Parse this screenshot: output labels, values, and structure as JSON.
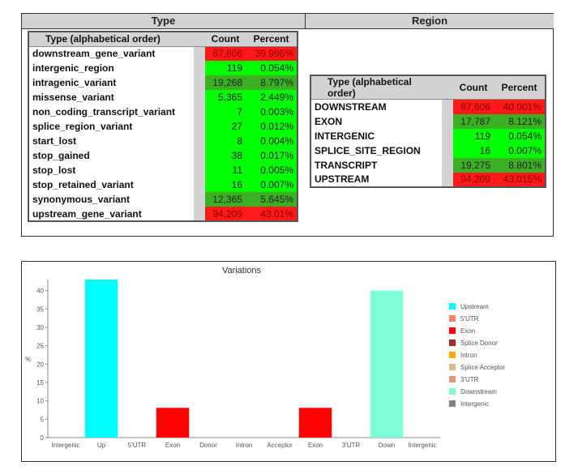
{
  "top": {
    "type_header": "Type",
    "region_header": "Region"
  },
  "type_table": {
    "col_name": "Type (alphabetical order)",
    "col_count": "Count",
    "col_percent": "Percent",
    "rows": [
      {
        "name": "downstream_gene_variant",
        "count": "87,606",
        "percent": "39.996%",
        "color": "red"
      },
      {
        "name": "intergenic_region",
        "count": "119",
        "percent": "0.054%",
        "color": "green"
      },
      {
        "name": "intragenic_variant",
        "count": "19,268",
        "percent": "8.797%",
        "color": "dgreen"
      },
      {
        "name": "missense_variant",
        "count": "5,365",
        "percent": "2.449%",
        "color": "green"
      },
      {
        "name": "non_coding_transcript_variant",
        "count": "7",
        "percent": "0.003%",
        "color": "green"
      },
      {
        "name": "splice_region_variant",
        "count": "27",
        "percent": "0.012%",
        "color": "green"
      },
      {
        "name": "start_lost",
        "count": "8",
        "percent": "0.004%",
        "color": "green"
      },
      {
        "name": "stop_gained",
        "count": "38",
        "percent": "0.017%",
        "color": "green"
      },
      {
        "name": "stop_lost",
        "count": "11",
        "percent": "0.005%",
        "color": "green"
      },
      {
        "name": "stop_retained_variant",
        "count": "16",
        "percent": "0.007%",
        "color": "green"
      },
      {
        "name": "synonymous_variant",
        "count": "12,365",
        "percent": "5.645%",
        "color": "dgreen"
      },
      {
        "name": "upstream_gene_variant",
        "count": "94,209",
        "percent": "43.01%",
        "color": "red"
      }
    ]
  },
  "region_table": {
    "col_name": "Type (alphabetical order)",
    "col_count": "Count",
    "col_percent": "Percent",
    "rows": [
      {
        "name": "DOWNSTREAM",
        "count": "87,606",
        "percent": "40.001%",
        "color": "red"
      },
      {
        "name": "EXON",
        "count": "17,787",
        "percent": "8.121%",
        "color": "dgreen"
      },
      {
        "name": "INTERGENIC",
        "count": "119",
        "percent": "0.054%",
        "color": "green"
      },
      {
        "name": "SPLICE_SITE_REGION",
        "count": "16",
        "percent": "0.007%",
        "color": "green"
      },
      {
        "name": "TRANSCRIPT",
        "count": "19,275",
        "percent": "8.801%",
        "color": "dgreen"
      },
      {
        "name": "UPSTREAM",
        "count": "94,209",
        "percent": "43.015%",
        "color": "red"
      }
    ]
  },
  "colors": {
    "red": "#ff1a1a",
    "green": "#00ff00",
    "dgreen": "#3cb024"
  },
  "chart_data": {
    "type": "bar",
    "title": "Variations",
    "ylabel": "%",
    "xlabel": "",
    "ylim": [
      0,
      43
    ],
    "yticks": [
      0,
      5,
      10,
      15,
      20,
      25,
      30,
      35,
      40
    ],
    "categories": [
      "Intergenic",
      "Up",
      "5'UTR",
      "Exon",
      "Donor",
      "Intron",
      "Acceptor",
      "Exon",
      "3'UTR",
      "Down",
      "Intergenic"
    ],
    "values": [
      0,
      43.0,
      0,
      8.1,
      0,
      0,
      0,
      8.1,
      0,
      40.0,
      0
    ],
    "bar_colors": [
      "#808080",
      "#00ffff",
      "#fa8072",
      "#ff0000",
      "#a52a2a",
      "#ffa500",
      "#deb887",
      "#ff0000",
      "#e9967a",
      "#7fffd4",
      "#808080"
    ],
    "legend": [
      {
        "label": "Upstream",
        "color": "#00ffff"
      },
      {
        "label": "5'UTR",
        "color": "#fa8072"
      },
      {
        "label": "Exon",
        "color": "#ff0000"
      },
      {
        "label": "Splice Donor",
        "color": "#a52a2a"
      },
      {
        "label": "Intron",
        "color": "#ffa500"
      },
      {
        "label": "Splice Acceptor",
        "color": "#deb887"
      },
      {
        "label": "3'UTR",
        "color": "#e9967a"
      },
      {
        "label": "Downstream",
        "color": "#7fffd4"
      },
      {
        "label": "Intergenic",
        "color": "#808080"
      }
    ],
    "legend_position": "right",
    "grid": false
  }
}
